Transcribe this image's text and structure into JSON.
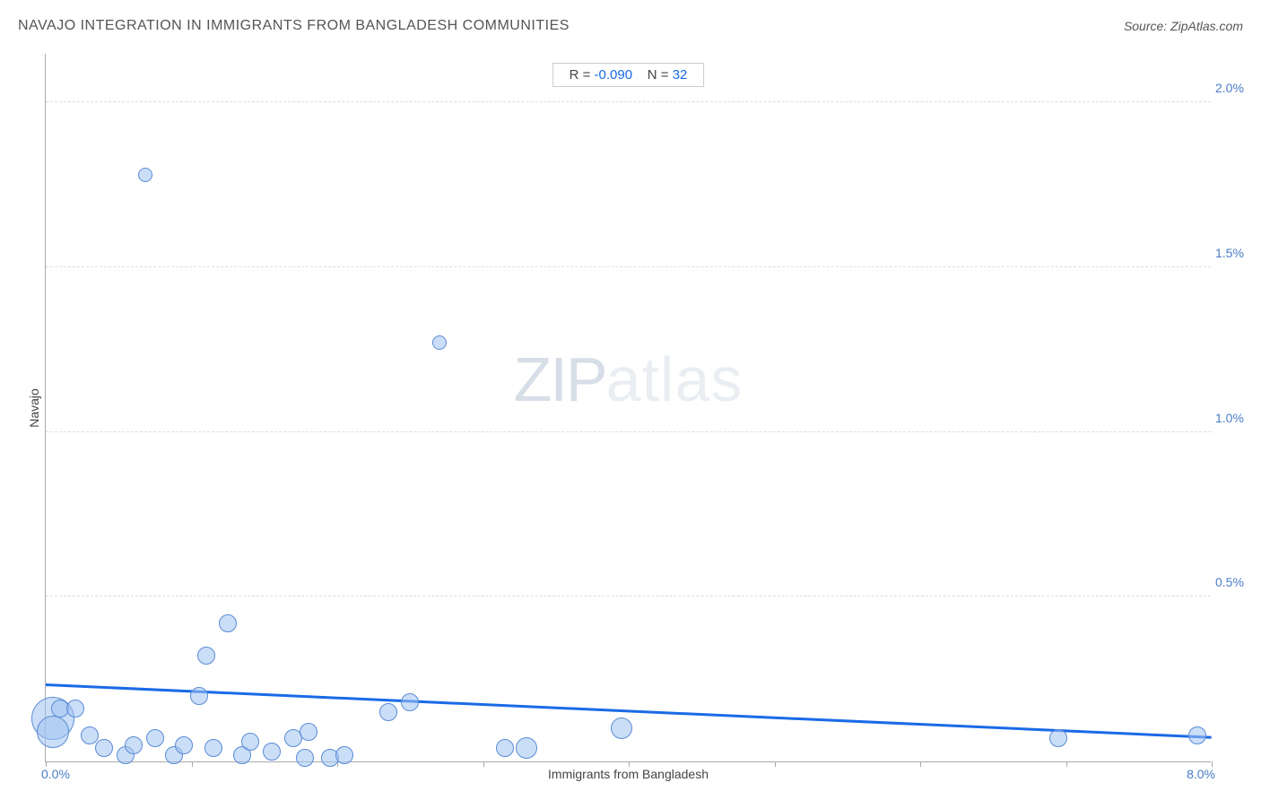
{
  "header": {
    "title": "NAVAJO INTEGRATION IN IMMIGRANTS FROM BANGLADESH COMMUNITIES",
    "source_prefix": "Source: ",
    "source_name": "ZipAtlas.com"
  },
  "stats": {
    "r_label": "R = ",
    "r_value": "-0.090",
    "n_label": "N = ",
    "n_value": "32"
  },
  "watermark": {
    "part1": "ZIP",
    "part2": "atlas"
  },
  "chart": {
    "type": "scatter",
    "xlabel": "Immigrants from Bangladesh",
    "ylabel": "Navajo",
    "xlim": [
      0.0,
      8.0
    ],
    "ylim": [
      0.0,
      2.15
    ],
    "xtick_positions": [
      0.0,
      1.0,
      2.0,
      3.0,
      4.0,
      5.0,
      6.0,
      7.0,
      8.0
    ],
    "xtick_labels_shown": {
      "min": "0.0%",
      "max": "8.0%"
    },
    "ytick_positions": [
      0.5,
      1.0,
      1.5,
      2.0
    ],
    "ytick_labels": [
      "0.5%",
      "1.0%",
      "1.5%",
      "2.0%"
    ],
    "gridline_color": "#dddddd",
    "axis_color": "#aaaaaa",
    "tick_label_color": "#4a7bc8",
    "axis_title_color": "#444444",
    "background_color": "#ffffff",
    "trend_line": {
      "color": "#1a6ae6",
      "width": 2.5,
      "x1": 0.0,
      "y1": 0.23,
      "x2": 8.0,
      "y2": 0.07
    },
    "point_style": {
      "fill": "rgba(160,195,240,0.55)",
      "stroke": "#5a8bd6",
      "stroke_width": 1
    },
    "points": [
      {
        "x": 0.05,
        "y": 0.13,
        "r": 24
      },
      {
        "x": 0.05,
        "y": 0.09,
        "r": 18
      },
      {
        "x": 0.1,
        "y": 0.16,
        "r": 10
      },
      {
        "x": 0.2,
        "y": 0.16,
        "r": 10
      },
      {
        "x": 0.3,
        "y": 0.08,
        "r": 10
      },
      {
        "x": 0.4,
        "y": 0.04,
        "r": 10
      },
      {
        "x": 0.55,
        "y": 0.02,
        "r": 10
      },
      {
        "x": 0.6,
        "y": 0.05,
        "r": 10
      },
      {
        "x": 0.68,
        "y": 1.78,
        "r": 8
      },
      {
        "x": 0.75,
        "y": 0.07,
        "r": 10
      },
      {
        "x": 0.88,
        "y": 0.02,
        "r": 10
      },
      {
        "x": 0.95,
        "y": 0.05,
        "r": 10
      },
      {
        "x": 1.05,
        "y": 0.2,
        "r": 10
      },
      {
        "x": 1.1,
        "y": 0.32,
        "r": 10
      },
      {
        "x": 1.15,
        "y": 0.04,
        "r": 10
      },
      {
        "x": 1.25,
        "y": 0.42,
        "r": 10
      },
      {
        "x": 1.35,
        "y": 0.02,
        "r": 10
      },
      {
        "x": 1.4,
        "y": 0.06,
        "r": 10
      },
      {
        "x": 1.55,
        "y": 0.03,
        "r": 10
      },
      {
        "x": 1.7,
        "y": 0.07,
        "r": 10
      },
      {
        "x": 1.78,
        "y": 0.01,
        "r": 10
      },
      {
        "x": 1.8,
        "y": 0.09,
        "r": 10
      },
      {
        "x": 1.95,
        "y": 0.01,
        "r": 10
      },
      {
        "x": 2.05,
        "y": 0.02,
        "r": 10
      },
      {
        "x": 2.35,
        "y": 0.15,
        "r": 10
      },
      {
        "x": 2.5,
        "y": 0.18,
        "r": 10
      },
      {
        "x": 2.7,
        "y": 1.27,
        "r": 8
      },
      {
        "x": 3.15,
        "y": 0.04,
        "r": 10
      },
      {
        "x": 3.3,
        "y": 0.04,
        "r": 12
      },
      {
        "x": 3.95,
        "y": 0.1,
        "r": 12
      },
      {
        "x": 6.95,
        "y": 0.07,
        "r": 10
      },
      {
        "x": 7.9,
        "y": 0.08,
        "r": 10
      }
    ]
  }
}
